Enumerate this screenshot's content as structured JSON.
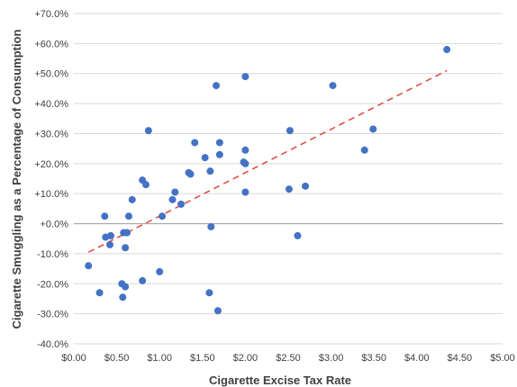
{
  "chart_data": {
    "type": "scatter",
    "title": "",
    "xlabel": "Cigarette Excise Tax Rate",
    "ylabel": "Cigarette Smuggling as a Percentage of Consumption",
    "xlim": [
      0,
      5
    ],
    "ylim": [
      -40,
      70
    ],
    "x_ticks": [
      0,
      0.5,
      1,
      1.5,
      2,
      2.5,
      3,
      3.5,
      4,
      4.5,
      5
    ],
    "x_tick_labels": [
      "$0.00",
      "$0.50",
      "$1.00",
      "$1.50",
      "$2.00",
      "$2.50",
      "$3.00",
      "$3.50",
      "$4.00",
      "$4.50",
      "$5.00"
    ],
    "y_ticks": [
      -40,
      -30,
      -20,
      -10,
      0,
      10,
      20,
      30,
      40,
      50,
      60,
      70
    ],
    "y_tick_labels": [
      "-40.0%",
      "-30.0%",
      "-20.0%",
      "-10.0%",
      "+0.0%",
      "+10.0%",
      "+20.0%",
      "+30.0%",
      "+40.0%",
      "+50.0%",
      "+60.0%",
      "+70.0%"
    ],
    "grid": "horizontal",
    "zero_line_color": "#a6a6a6",
    "point_color": "#4472c4",
    "trendline": {
      "type": "linear",
      "style": "dashed",
      "color": "#e0463a",
      "x": [
        0.17,
        4.35
      ],
      "y": [
        -9.5,
        51.0
      ]
    },
    "series": [
      {
        "points": [
          [
            0.17,
            -14
          ],
          [
            0.3,
            -23
          ],
          [
            0.36,
            2.5
          ],
          [
            0.37,
            -4.5
          ],
          [
            0.42,
            -7
          ],
          [
            0.43,
            -4
          ],
          [
            0.56,
            -20
          ],
          [
            0.57,
            -24.5
          ],
          [
            0.58,
            -3
          ],
          [
            0.6,
            -21
          ],
          [
            0.6,
            -8
          ],
          [
            0.62,
            -3
          ],
          [
            0.64,
            2.5
          ],
          [
            0.68,
            8
          ],
          [
            0.8,
            14.5
          ],
          [
            0.8,
            -19
          ],
          [
            0.84,
            13
          ],
          [
            0.87,
            31
          ],
          [
            1.0,
            -16
          ],
          [
            1.03,
            2.5
          ],
          [
            1.15,
            8
          ],
          [
            1.18,
            10.5
          ],
          [
            1.25,
            6.5
          ],
          [
            1.34,
            17
          ],
          [
            1.36,
            16.5
          ],
          [
            1.41,
            27
          ],
          [
            1.53,
            22
          ],
          [
            1.58,
            -23
          ],
          [
            1.59,
            17.5
          ],
          [
            1.6,
            -1
          ],
          [
            1.66,
            46
          ],
          [
            1.68,
            -29
          ],
          [
            1.7,
            27
          ],
          [
            1.7,
            23
          ],
          [
            1.98,
            20.5
          ],
          [
            2.0,
            49
          ],
          [
            2.0,
            24.5
          ],
          [
            2.0,
            10.5
          ],
          [
            2.0,
            20
          ],
          [
            2.51,
            11.5
          ],
          [
            2.52,
            31
          ],
          [
            2.61,
            -4
          ],
          [
            2.7,
            12.5
          ],
          [
            3.02,
            46
          ],
          [
            3.39,
            24.5
          ],
          [
            3.49,
            31.5
          ],
          [
            4.35,
            58
          ]
        ]
      }
    ]
  }
}
